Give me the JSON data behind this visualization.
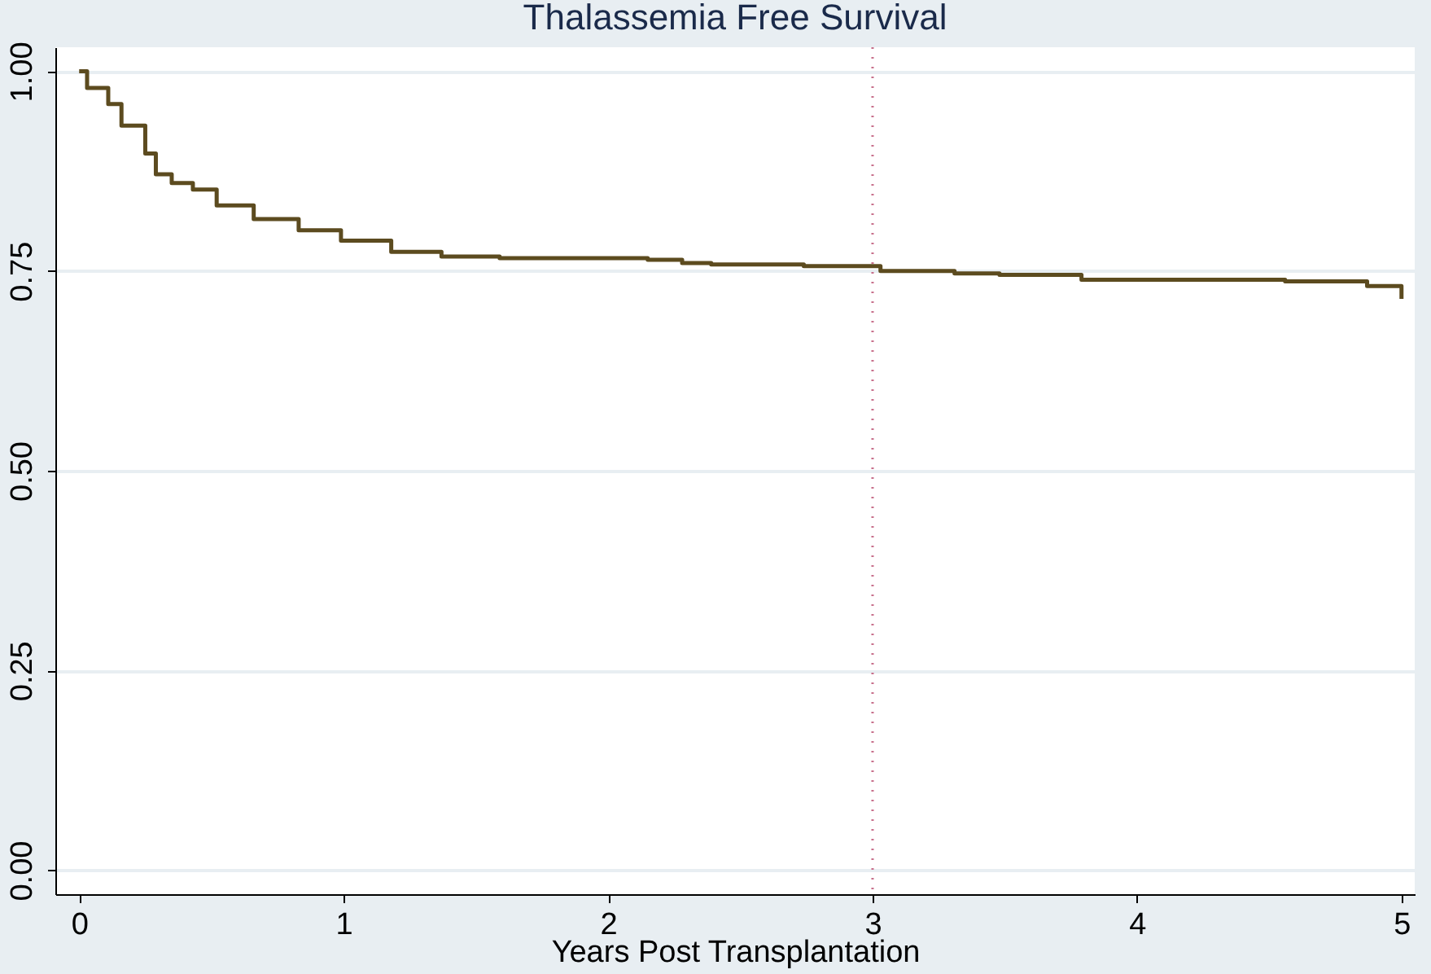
{
  "chart_data": {
    "type": "step",
    "title": "Thalassemia Free Survival",
    "xlabel": "Years Post Transplantation",
    "x": [
      0,
      0.03,
      0.11,
      0.16,
      0.25,
      0.29,
      0.35,
      0.43,
      0.52,
      0.66,
      0.83,
      0.99,
      1.18,
      1.37,
      1.59,
      2.15,
      2.28,
      2.39,
      2.74,
      3.03,
      3.31,
      3.48,
      3.79,
      4.56,
      4.87,
      5.0
    ],
    "series": [
      {
        "color": "#5c4b1f",
        "values": [
          1.0,
          0.979,
          0.959,
          0.932,
          0.897,
          0.871,
          0.86,
          0.852,
          0.832,
          0.815,
          0.801,
          0.788,
          0.774,
          0.768,
          0.766,
          0.764,
          0.76,
          0.758,
          0.756,
          0.75,
          0.747,
          0.745,
          0.739,
          0.737,
          0.731,
          0.715
        ]
      }
    ],
    "xlim": [
      -0.09,
      5.05
    ],
    "ylim": [
      -0.03,
      1.03
    ],
    "xticks": [
      0,
      1,
      2,
      3,
      4,
      5
    ],
    "yticks": [
      {
        "value": 0,
        "label": "0.00"
      },
      {
        "value": 0.25,
        "label": "0.25"
      },
      {
        "value": 0.5,
        "label": "0.50"
      },
      {
        "value": 0.75,
        "label": "0.75"
      },
      {
        "value": 1,
        "label": "1.00"
      }
    ],
    "grid": "y",
    "ref_lines": [
      {
        "axis": "x",
        "value": 3,
        "color": "#c8708c",
        "line_style": "dotted"
      }
    ]
  }
}
